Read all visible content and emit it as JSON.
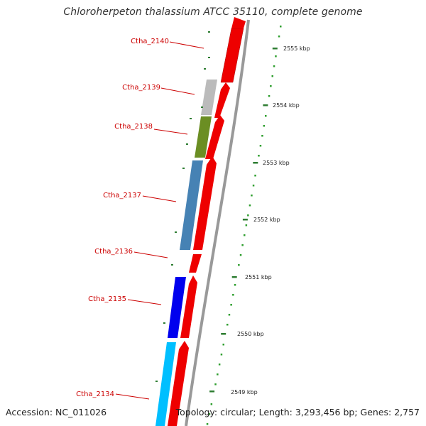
{
  "title": "Chloroherpeton thalassium ATCC 35110, complete genome",
  "footer": {
    "accession": "Accession: NC_011026",
    "topology": "Topology: circular; Length: 3,293,456 bp; Genes: 2,757"
  },
  "colors": {
    "strand_gene": "#ee0000",
    "label_text": "#cc0000",
    "tick_major": "#2e7d32",
    "tick_minor": "#2e9e2e",
    "backbone": "#999999"
  },
  "scale_ticks": [
    {
      "label": "2555 kbp"
    },
    {
      "label": "2554 kbp"
    },
    {
      "label": "2553 kbp"
    },
    {
      "label": "2552 kbp"
    },
    {
      "label": "2551 kbp"
    },
    {
      "label": "2550 kbp"
    },
    {
      "label": "2549 kbp"
    }
  ],
  "labeled_genes": [
    {
      "name": "Ctha_2140",
      "color": "none"
    },
    {
      "name": "Ctha_2139",
      "color": "#bbbbbb"
    },
    {
      "name": "Ctha_2138",
      "color": "#6b8e23"
    },
    {
      "name": "Ctha_2137",
      "color": "#4682b4"
    },
    {
      "name": "Ctha_2136",
      "color": "none"
    },
    {
      "name": "Ctha_2135",
      "color": "#0000ee"
    },
    {
      "name": "Ctha_2134",
      "color": "#00bfff"
    }
  ]
}
